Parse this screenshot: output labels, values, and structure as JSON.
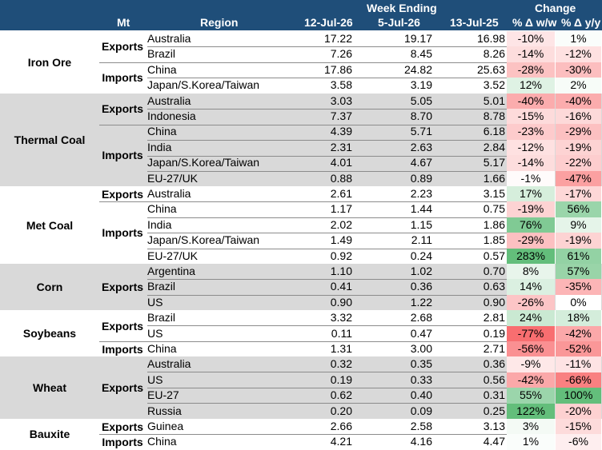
{
  "header": {
    "mt": "Mt",
    "region": "Region",
    "week_ending": "Week Ending",
    "change": "Change",
    "col1": "12-Jul-26",
    "col2": "5-Jul-26",
    "col3": "13-Jul-25",
    "ww": "% Δ w/w",
    "yy": "% Δ y/y"
  },
  "colors": {
    "header_bg": "#1f4e79",
    "shade": "#d9d9d9",
    "positive": "#63be7b",
    "negative": "#f8696b"
  },
  "commodities": [
    {
      "name": "Iron Ore",
      "shaded": false,
      "flows": [
        {
          "label": "Exports",
          "rows": [
            {
              "region": "Australia",
              "v1": "17.22",
              "v2": "19.17",
              "v3": "16.98",
              "ww": "-10%",
              "yy": "1%",
              "ww_val": -10,
              "yy_val": 1
            },
            {
              "region": "Brazil",
              "v1": "7.26",
              "v2": "8.45",
              "v3": "8.26",
              "ww": "-14%",
              "yy": "-12%",
              "ww_val": -14,
              "yy_val": -12
            }
          ]
        },
        {
          "label": "Imports",
          "rows": [
            {
              "region": "China",
              "v1": "17.86",
              "v2": "24.82",
              "v3": "25.63",
              "ww": "-28%",
              "yy": "-30%",
              "ww_val": -28,
              "yy_val": -30
            },
            {
              "region": "Japan/S.Korea/Taiwan",
              "v1": "3.58",
              "v2": "3.19",
              "v3": "3.52",
              "ww": "12%",
              "yy": "2%",
              "ww_val": 12,
              "yy_val": 2
            }
          ]
        }
      ]
    },
    {
      "name": "Thermal Coal",
      "shaded": true,
      "flows": [
        {
          "label": "Exports",
          "rows": [
            {
              "region": "Australia",
              "v1": "3.03",
              "v2": "5.05",
              "v3": "5.01",
              "ww": "-40%",
              "yy": "-40%",
              "ww_val": -40,
              "yy_val": -40
            },
            {
              "region": "Indonesia",
              "v1": "7.37",
              "v2": "8.70",
              "v3": "8.78",
              "ww": "-15%",
              "yy": "-16%",
              "ww_val": -15,
              "yy_val": -16
            }
          ]
        },
        {
          "label": "Imports",
          "rows": [
            {
              "region": "China",
              "v1": "4.39",
              "v2": "5.71",
              "v3": "6.18",
              "ww": "-23%",
              "yy": "-29%",
              "ww_val": -23,
              "yy_val": -29
            },
            {
              "region": "India",
              "v1": "2.31",
              "v2": "2.63",
              "v3": "2.84",
              "ww": "-12%",
              "yy": "-19%",
              "ww_val": -12,
              "yy_val": -19
            },
            {
              "region": "Japan/S.Korea/Taiwan",
              "v1": "4.01",
              "v2": "4.67",
              "v3": "5.17",
              "ww": "-14%",
              "yy": "-22%",
              "ww_val": -14,
              "yy_val": -22
            },
            {
              "region": "EU-27/UK",
              "v1": "0.88",
              "v2": "0.89",
              "v3": "1.66",
              "ww": "-1%",
              "yy": "-47%",
              "ww_val": -1,
              "yy_val": -47
            }
          ]
        }
      ]
    },
    {
      "name": "Met Coal",
      "shaded": false,
      "flows": [
        {
          "label": "Exports",
          "rows": [
            {
              "region": "Australia",
              "v1": "2.61",
              "v2": "2.23",
              "v3": "3.15",
              "ww": "17%",
              "yy": "-17%",
              "ww_val": 17,
              "yy_val": -17
            }
          ]
        },
        {
          "label": "Imports",
          "rows": [
            {
              "region": "China",
              "v1": "1.17",
              "v2": "1.44",
              "v3": "0.75",
              "ww": "-19%",
              "yy": "56%",
              "ww_val": -19,
              "yy_val": 56
            },
            {
              "region": "India",
              "v1": "2.02",
              "v2": "1.15",
              "v3": "1.86",
              "ww": "76%",
              "yy": "9%",
              "ww_val": 76,
              "yy_val": 9
            },
            {
              "region": "Japan/S.Korea/Taiwan",
              "v1": "1.49",
              "v2": "2.11",
              "v3": "1.85",
              "ww": "-29%",
              "yy": "-19%",
              "ww_val": -29,
              "yy_val": -19
            },
            {
              "region": "EU-27/UK",
              "v1": "0.92",
              "v2": "0.24",
              "v3": "0.57",
              "ww": "283%",
              "yy": "61%",
              "ww_val": 283,
              "yy_val": 61
            }
          ]
        }
      ]
    },
    {
      "name": "Corn",
      "shaded": true,
      "flows": [
        {
          "label": "Exports",
          "rows": [
            {
              "region": "Argentina",
              "v1": "1.10",
              "v2": "1.02",
              "v3": "0.70",
              "ww": "8%",
              "yy": "57%",
              "ww_val": 8,
              "yy_val": 57
            },
            {
              "region": "Brazil",
              "v1": "0.41",
              "v2": "0.36",
              "v3": "0.63",
              "ww": "14%",
              "yy": "-35%",
              "ww_val": 14,
              "yy_val": -35
            },
            {
              "region": "US",
              "v1": "0.90",
              "v2": "1.22",
              "v3": "0.90",
              "ww": "-26%",
              "yy": "0%",
              "ww_val": -26,
              "yy_val": 0
            }
          ]
        }
      ]
    },
    {
      "name": "Soybeans",
      "shaded": false,
      "flows": [
        {
          "label": "Exports",
          "rows": [
            {
              "region": "Brazil",
              "v1": "3.32",
              "v2": "2.68",
              "v3": "2.81",
              "ww": "24%",
              "yy": "18%",
              "ww_val": 24,
              "yy_val": 18
            },
            {
              "region": "US",
              "v1": "0.11",
              "v2": "0.47",
              "v3": "0.19",
              "ww": "-77%",
              "yy": "-42%",
              "ww_val": -77,
              "yy_val": -42
            }
          ]
        },
        {
          "label": "Imports",
          "rows": [
            {
              "region": "China",
              "v1": "1.31",
              "v2": "3.00",
              "v3": "2.71",
              "ww": "-56%",
              "yy": "-52%",
              "ww_val": -56,
              "yy_val": -52
            }
          ]
        }
      ]
    },
    {
      "name": "Wheat",
      "shaded": true,
      "flows": [
        {
          "label": "Exports",
          "rows": [
            {
              "region": "Australia",
              "v1": "0.32",
              "v2": "0.35",
              "v3": "0.36",
              "ww": "-9%",
              "yy": "-11%",
              "ww_val": -9,
              "yy_val": -11
            },
            {
              "region": "US",
              "v1": "0.19",
              "v2": "0.33",
              "v3": "0.56",
              "ww": "-42%",
              "yy": "-66%",
              "ww_val": -42,
              "yy_val": -66
            },
            {
              "region": "EU-27",
              "v1": "0.62",
              "v2": "0.40",
              "v3": "0.31",
              "ww": "55%",
              "yy": "100%",
              "ww_val": 55,
              "yy_val": 100
            },
            {
              "region": "Russia",
              "v1": "0.20",
              "v2": "0.09",
              "v3": "0.25",
              "ww": "122%",
              "yy": "-20%",
              "ww_val": 122,
              "yy_val": -20
            }
          ]
        }
      ]
    },
    {
      "name": "Bauxite",
      "shaded": false,
      "flows": [
        {
          "label": "Exports",
          "rows": [
            {
              "region": "Guinea",
              "v1": "2.66",
              "v2": "2.58",
              "v3": "3.13",
              "ww": "3%",
              "yy": "-15%",
              "ww_val": 3,
              "yy_val": -15
            }
          ]
        },
        {
          "label": "Imports",
          "rows": [
            {
              "region": "China",
              "v1": "4.21",
              "v2": "4.16",
              "v3": "4.47",
              "ww": "1%",
              "yy": "-6%",
              "ww_val": 1,
              "yy_val": -6
            }
          ]
        }
      ]
    }
  ]
}
